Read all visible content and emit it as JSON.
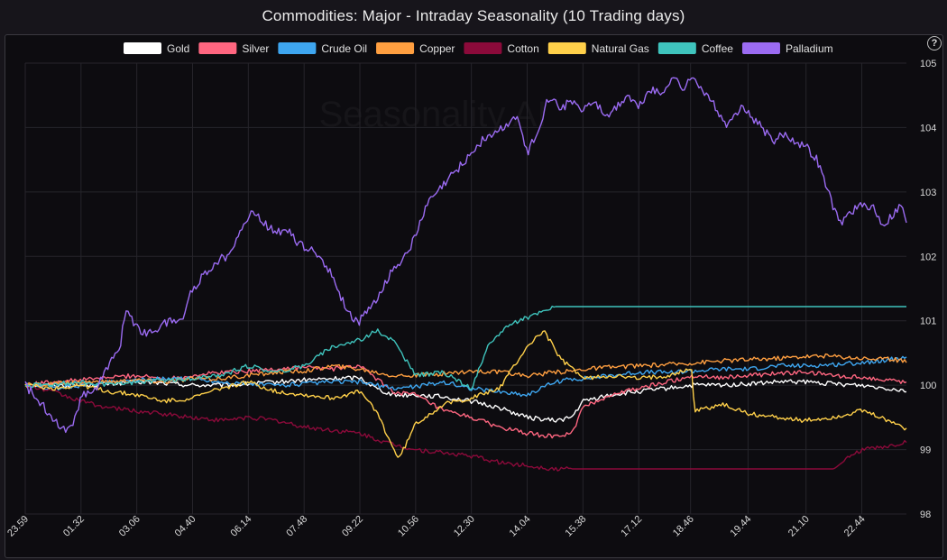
{
  "title": "Commodities: Major - Intraday Seasonality (10 Trading days)",
  "help_glyph": "?",
  "watermark": "Seasonality.AI",
  "chart_data": {
    "type": "line",
    "title": "Commodities: Major - Intraday Seasonality (10 Trading days)",
    "legend_position": "top",
    "grid": true,
    "y_axis_side": "right",
    "ylim": [
      98,
      105
    ],
    "yticks": [
      "98",
      "99",
      "100",
      "101",
      "102",
      "103",
      "104",
      "105"
    ],
    "x_tick_labels": [
      "23.59",
      "01.32",
      "03.06",
      "04.40",
      "06.14",
      "07.48",
      "09.22",
      "10.56",
      "12.30",
      "14.04",
      "15.38",
      "17.12",
      "18.46",
      "19.44",
      "21.10",
      "22.44"
    ],
    "x_tick_positions": [
      0,
      1,
      2,
      3,
      4,
      5,
      6,
      7,
      8,
      9,
      10,
      11,
      11.93,
      12.96,
      14.0,
      15.0
    ],
    "x_range": [
      0,
      15.8
    ],
    "series": [
      {
        "name": "Gold",
        "color": "#ffffff",
        "x": [
          0,
          0.5,
          1,
          1.5,
          2,
          2.5,
          3,
          3.5,
          4,
          4.5,
          5,
          5.5,
          6,
          6.3,
          6.6,
          7,
          7.5,
          8,
          8.5,
          9,
          9.5,
          9.8,
          10,
          10.5,
          11,
          11.5,
          12,
          12.5,
          13,
          13.5,
          14,
          14.5,
          15,
          15.5,
          15.8
        ],
        "y": [
          100.0,
          100.0,
          100.0,
          100.02,
          100.05,
          100.03,
          100.0,
          100.0,
          100.02,
          100.05,
          100.08,
          100.1,
          100.12,
          99.95,
          99.85,
          99.85,
          99.82,
          99.75,
          99.65,
          99.5,
          99.45,
          99.5,
          99.75,
          99.85,
          99.9,
          99.95,
          100.0,
          100.0,
          100.02,
          100.05,
          100.05,
          100.02,
          100.0,
          99.95,
          99.92
        ]
      },
      {
        "name": "Silver",
        "color": "#ff6680",
        "x": [
          0,
          0.5,
          1,
          1.5,
          2,
          2.5,
          3,
          3.5,
          4,
          4.5,
          5,
          5.5,
          6,
          6.3,
          6.6,
          7,
          7.5,
          8,
          8.5,
          9,
          9.5,
          9.8,
          10,
          10.5,
          11,
          11.5,
          12,
          12.5,
          13,
          13.5,
          14,
          14.5,
          15,
          15.5,
          15.8
        ],
        "y": [
          100.0,
          100.05,
          100.08,
          100.12,
          100.15,
          100.1,
          100.15,
          100.2,
          100.22,
          100.25,
          100.28,
          100.25,
          100.3,
          100.1,
          99.9,
          99.85,
          99.6,
          99.5,
          99.35,
          99.25,
          99.2,
          99.25,
          99.65,
          99.85,
          99.95,
          100.05,
          100.15,
          100.12,
          100.15,
          100.18,
          100.2,
          100.15,
          100.12,
          100.08,
          100.05
        ]
      },
      {
        "name": "Crude Oil",
        "color": "#3ea6f0",
        "x": [
          0,
          0.5,
          1,
          1.5,
          2,
          2.5,
          3,
          3.5,
          4,
          4.5,
          5,
          5.5,
          6,
          6.3,
          6.6,
          7,
          7.5,
          8,
          8.5,
          9,
          9.5,
          9.8,
          10,
          10.5,
          11,
          11.5,
          12,
          12.5,
          13,
          13.5,
          14,
          14.5,
          15,
          15.5,
          15.8
        ],
        "y": [
          100.0,
          99.95,
          100.0,
          100.05,
          100.08,
          100.1,
          100.1,
          100.05,
          100.02,
          100.0,
          100.02,
          100.05,
          100.05,
          100.0,
          99.95,
          99.98,
          100.05,
          99.95,
          99.9,
          99.85,
          100.05,
          100.1,
          100.1,
          100.15,
          100.2,
          100.2,
          100.22,
          100.25,
          100.25,
          100.3,
          100.3,
          100.32,
          100.35,
          100.4,
          100.42
        ]
      },
      {
        "name": "Copper",
        "color": "#ff9f40",
        "x": [
          0,
          0.5,
          1,
          1.5,
          2,
          2.5,
          3,
          3.5,
          4,
          4.5,
          5,
          5.5,
          6,
          6.3,
          6.6,
          7,
          7.5,
          8,
          8.5,
          9,
          9.5,
          9.8,
          10,
          10.5,
          11,
          11.5,
          12,
          12.5,
          13,
          13.5,
          14,
          14.5,
          15,
          15.5,
          15.8
        ],
        "y": [
          100.0,
          100.02,
          100.05,
          100.05,
          100.08,
          100.05,
          100.1,
          100.1,
          100.15,
          100.2,
          100.22,
          100.3,
          100.25,
          100.2,
          100.15,
          100.15,
          100.18,
          100.22,
          100.2,
          100.15,
          100.2,
          100.22,
          100.25,
          100.28,
          100.3,
          100.32,
          100.35,
          100.38,
          100.4,
          100.42,
          100.45,
          100.45,
          100.42,
          100.4,
          100.38
        ]
      },
      {
        "name": "Cotton",
        "color": "#8b0a3a",
        "x": [
          0,
          0.5,
          1,
          1.5,
          2,
          2.5,
          3,
          3.5,
          4,
          4.5,
          5,
          5.5,
          6,
          6.5,
          7,
          7.5,
          8,
          8.5,
          9,
          9.5,
          9.8,
          10,
          10.5,
          11,
          11.5,
          12,
          12.5,
          13,
          13.5,
          14,
          14.5,
          14.8,
          15,
          15.5,
          15.8
        ],
        "y": [
          100.0,
          99.9,
          99.75,
          99.65,
          99.6,
          99.55,
          99.5,
          99.45,
          99.5,
          99.45,
          99.35,
          99.3,
          99.25,
          99.1,
          99.0,
          98.95,
          98.9,
          98.8,
          98.75,
          98.7,
          98.7,
          98.7,
          98.7,
          98.7,
          98.7,
          98.7,
          98.7,
          98.7,
          98.7,
          98.7,
          98.7,
          98.9,
          99.0,
          99.05,
          99.12
        ]
      },
      {
        "name": "Natural Gas",
        "color": "#ffd04a",
        "x": [
          0,
          0.5,
          1,
          1.5,
          2,
          2.5,
          3,
          3.5,
          4,
          4.5,
          5,
          5.5,
          6,
          6.3,
          6.5,
          6.7,
          7,
          7.5,
          8,
          8.5,
          9,
          9.3,
          9.6,
          9.9,
          10,
          10.5,
          11,
          11.5,
          11.95,
          12,
          12.5,
          13,
          13.5,
          14,
          14.5,
          15,
          15.5,
          15.8
        ],
        "y": [
          100.0,
          99.95,
          100.0,
          99.9,
          99.85,
          99.75,
          99.8,
          99.95,
          100.05,
          99.9,
          99.85,
          99.8,
          99.9,
          99.6,
          99.2,
          98.85,
          99.4,
          99.7,
          99.8,
          99.95,
          100.6,
          100.85,
          100.4,
          100.2,
          100.1,
          100.15,
          100.1,
          100.15,
          100.25,
          99.6,
          99.7,
          99.55,
          99.5,
          99.45,
          99.5,
          99.6,
          99.45,
          99.32
        ]
      },
      {
        "name": "Coffee",
        "color": "#3fc4bd",
        "x": [
          0,
          0.5,
          1,
          1.5,
          2,
          2.5,
          3,
          3.5,
          4,
          4.5,
          5,
          5.5,
          6,
          6.3,
          6.6,
          7,
          7.5,
          8,
          8.3,
          8.6,
          9,
          9.3,
          9.5,
          10,
          11,
          12,
          13,
          14,
          15,
          15.8
        ],
        "y": [
          100.0,
          100.02,
          100.05,
          100.0,
          100.05,
          100.08,
          100.1,
          100.15,
          100.3,
          100.2,
          100.3,
          100.6,
          100.7,
          100.85,
          100.7,
          100.15,
          100.2,
          99.95,
          100.6,
          100.9,
          101.05,
          101.15,
          101.22,
          101.22,
          101.22,
          101.22,
          101.22,
          101.22,
          101.22,
          101.22
        ]
      },
      {
        "name": "Palladium",
        "color": "#9b6bf2",
        "x": [
          0,
          0.3,
          0.6,
          0.8,
          1,
          1.3,
          1.5,
          1.7,
          1.8,
          2,
          2.2,
          2.4,
          2.6,
          2.8,
          3,
          3.2,
          3.4,
          3.6,
          3.8,
          4,
          4.1,
          4.3,
          4.5,
          4.7,
          4.9,
          5.1,
          5.3,
          5.5,
          5.7,
          5.9,
          6,
          6.2,
          6.4,
          6.6,
          6.8,
          7,
          7.2,
          7.4,
          7.6,
          7.8,
          8,
          8.2,
          8.4,
          8.6,
          8.8,
          9,
          9.2,
          9.4,
          9.6,
          9.8,
          10,
          10.2,
          10.4,
          10.6,
          10.8,
          11,
          11.2,
          11.4,
          11.6,
          11.8,
          12,
          12.2,
          12.4,
          12.6,
          12.8,
          13,
          13.2,
          13.4,
          13.6,
          13.8,
          14,
          14.2,
          14.4,
          14.6,
          14.8,
          15,
          15.1,
          15.2,
          15.3,
          15.4,
          15.5,
          15.6,
          15.7,
          15.8
        ],
        "y": [
          100.0,
          99.7,
          99.4,
          99.3,
          99.8,
          100.0,
          100.3,
          100.6,
          101.2,
          100.9,
          100.8,
          100.9,
          101.0,
          101.0,
          101.5,
          101.7,
          101.9,
          102.0,
          102.3,
          102.6,
          102.7,
          102.5,
          102.4,
          102.4,
          102.2,
          102.1,
          102.0,
          101.7,
          101.3,
          101.0,
          101.0,
          101.2,
          101.5,
          101.8,
          102.0,
          102.3,
          102.8,
          103.0,
          103.2,
          103.4,
          103.6,
          103.8,
          103.9,
          104.0,
          104.2,
          103.6,
          104.0,
          104.5,
          104.3,
          104.4,
          104.3,
          104.4,
          104.2,
          104.3,
          104.5,
          104.3,
          104.6,
          104.5,
          104.8,
          104.6,
          104.8,
          104.5,
          104.3,
          104.0,
          104.3,
          104.2,
          104.0,
          103.8,
          103.9,
          103.8,
          103.7,
          103.5,
          103.0,
          102.5,
          102.7,
          102.8,
          102.7,
          102.8,
          102.6,
          102.5,
          102.6,
          102.7,
          102.8,
          102.55
        ]
      }
    ]
  }
}
